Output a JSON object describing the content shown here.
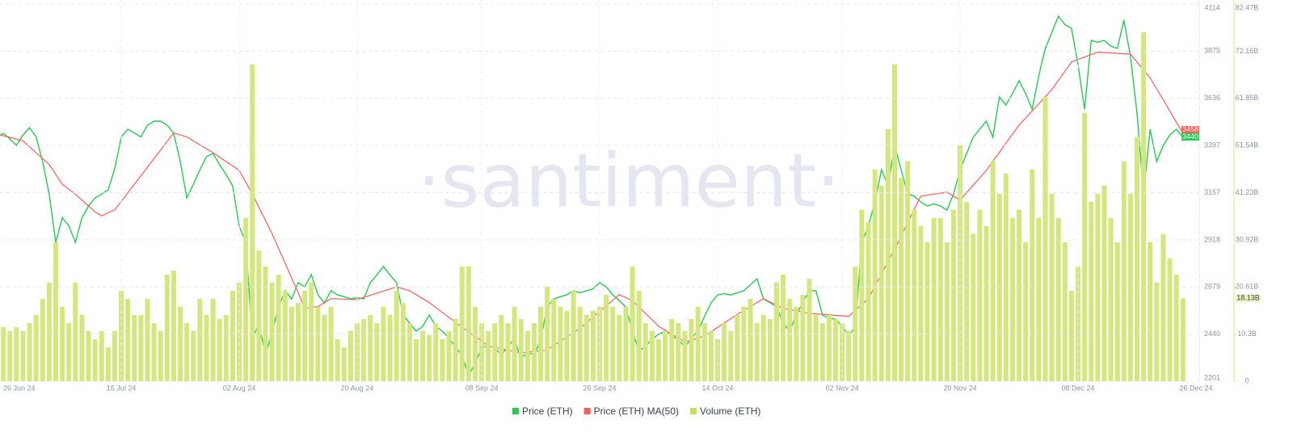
{
  "chart_data": {
    "type": "line",
    "watermark": "·santiment·",
    "x": [
      "26 Jun 24",
      "27 Jun 24",
      "28 Jun 24",
      "29 Jun 24",
      "30 Jun 24",
      "01 Jul 24",
      "02 Jul 24",
      "03 Jul 24",
      "04 Jul 24",
      "05 Jul 24",
      "06 Jul 24",
      "07 Jul 24",
      "08 Jul 24",
      "09 Jul 24",
      "10 Jul 24",
      "11 Jul 24",
      "12 Jul 24",
      "13 Jul 24",
      "14 Jul 24",
      "15 Jul 24",
      "16 Jul 24",
      "17 Jul 24",
      "18 Jul 24",
      "19 Jul 24",
      "20 Jul 24",
      "21 Jul 24",
      "22 Jul 24",
      "23 Jul 24",
      "24 Jul 24",
      "25 Jul 24",
      "26 Jul 24",
      "27 Jul 24",
      "28 Jul 24",
      "29 Jul 24",
      "30 Jul 24",
      "31 Jul 24",
      "01 Aug 24",
      "02 Aug 24",
      "03 Aug 24",
      "04 Aug 24",
      "05 Aug 24",
      "06 Aug 24",
      "07 Aug 24",
      "08 Aug 24",
      "09 Aug 24",
      "10 Aug 24",
      "11 Aug 24",
      "12 Aug 24",
      "13 Aug 24",
      "14 Aug 24",
      "15 Aug 24",
      "16 Aug 24",
      "17 Aug 24",
      "18 Aug 24",
      "19 Aug 24",
      "20 Aug 24",
      "21 Aug 24",
      "22 Aug 24",
      "23 Aug 24",
      "24 Aug 24",
      "25 Aug 24",
      "26 Aug 24",
      "27 Aug 24",
      "28 Aug 24",
      "29 Aug 24",
      "30 Aug 24",
      "31 Aug 24",
      "01 Sep 24",
      "02 Sep 24",
      "03 Sep 24",
      "04 Sep 24",
      "05 Sep 24",
      "06 Sep 24",
      "07 Sep 24",
      "08 Sep 24",
      "09 Sep 24",
      "10 Sep 24",
      "11 Sep 24",
      "12 Sep 24",
      "13 Sep 24",
      "14 Sep 24",
      "15 Sep 24",
      "16 Sep 24",
      "17 Sep 24",
      "18 Sep 24",
      "19 Sep 24",
      "20 Sep 24",
      "21 Sep 24",
      "22 Sep 24",
      "23 Sep 24",
      "24 Sep 24",
      "25 Sep 24",
      "26 Sep 24",
      "27 Sep 24",
      "28 Sep 24",
      "29 Sep 24",
      "30 Sep 24",
      "01 Oct 24",
      "02 Oct 24",
      "03 Oct 24",
      "04 Oct 24",
      "05 Oct 24",
      "06 Oct 24",
      "07 Oct 24",
      "08 Oct 24",
      "09 Oct 24",
      "10 Oct 24",
      "11 Oct 24",
      "12 Oct 24",
      "13 Oct 24",
      "14 Oct 24",
      "15 Oct 24",
      "16 Oct 24",
      "17 Oct 24",
      "18 Oct 24",
      "19 Oct 24",
      "20 Oct 24",
      "21 Oct 24",
      "22 Oct 24",
      "23 Oct 24",
      "24 Oct 24",
      "25 Oct 24",
      "26 Oct 24",
      "27 Oct 24",
      "28 Oct 24",
      "29 Oct 24",
      "30 Oct 24",
      "31 Oct 24",
      "01 Nov 24",
      "02 Nov 24",
      "03 Nov 24",
      "04 Nov 24",
      "05 Nov 24",
      "06 Nov 24",
      "07 Nov 24",
      "08 Nov 24",
      "09 Nov 24",
      "10 Nov 24",
      "11 Nov 24",
      "12 Nov 24",
      "13 Nov 24",
      "14 Nov 24",
      "15 Nov 24",
      "16 Nov 24",
      "17 Nov 24",
      "18 Nov 24",
      "19 Nov 24",
      "20 Nov 24",
      "21 Nov 24",
      "22 Nov 24",
      "23 Nov 24",
      "24 Nov 24",
      "25 Nov 24",
      "26 Nov 24",
      "27 Nov 24",
      "28 Nov 24",
      "29 Nov 24",
      "30 Nov 24",
      "01 Dec 24",
      "02 Dec 24",
      "03 Dec 24",
      "04 Dec 24",
      "05 Dec 24",
      "06 Dec 24",
      "07 Dec 24",
      "08 Dec 24",
      "09 Dec 24",
      "10 Dec 24",
      "11 Dec 24",
      "12 Dec 24",
      "13 Dec 24",
      "14 Dec 24",
      "15 Dec 24",
      "16 Dec 24",
      "17 Dec 24",
      "18 Dec 24",
      "19 Dec 24",
      "20 Dec 24",
      "21 Dec 24",
      "22 Dec 24",
      "23 Dec 24",
      "24 Dec 24",
      "25 Dec 24",
      "26 Dec 24"
    ],
    "xticks": [
      "26 Jun 24",
      "15 Jul 24",
      "02 Aug 24",
      "20 Aug 24",
      "08 Sep 24",
      "26 Sep 24",
      "14 Oct 24",
      "02 Nov 24",
      "20 Nov 24",
      "08 Dec 24",
      "26 Dec 24"
    ],
    "ylim": [
      2201,
      4114
    ],
    "yticks": [
      2201,
      2440,
      2679,
      2918,
      3157,
      3397,
      3636,
      3875,
      4114
    ],
    "y2lim": [
      0,
      82.47
    ],
    "y2ticks": [
      0,
      {
        "value": 10.3,
        "label": "10.3B"
      },
      {
        "value": 20.61,
        "label": "20.61B"
      },
      {
        "value": 30.92,
        "label": "30.92B"
      },
      {
        "value": 41.23,
        "label": "41.23B"
      },
      {
        "value": 51.54,
        "label": "51.54B"
      },
      {
        "value": 61.85,
        "label": "61.85B"
      },
      {
        "value": 72.16,
        "label": "72.16B"
      },
      {
        "value": 82.47,
        "label": "82.47B"
      }
    ],
    "grid": true,
    "series": [
      {
        "name": "Price (ETH)",
        "color": "#26c953",
        "values": [
          3438,
          3458,
          3430,
          3397,
          3450,
          3487,
          3440,
          3315,
          3150,
          2905,
          3030,
          2990,
          2905,
          3030,
          3090,
          3131,
          3150,
          3172,
          3280,
          3440,
          3479,
          3460,
          3440,
          3500,
          3520,
          3520,
          3500,
          3458,
          3315,
          3131,
          3200,
          3274,
          3340,
          3356,
          3300,
          3250,
          3192,
          2987,
          2905,
          2414,
          2496,
          2332,
          2450,
          2578,
          2660,
          2619,
          2701,
          2680,
          2742,
          2640,
          2598,
          2660,
          2639,
          2630,
          2619,
          2625,
          2619,
          2701,
          2740,
          2783,
          2740,
          2701,
          2537,
          2496,
          2455,
          2480,
          2537,
          2480,
          2455,
          2420,
          2373,
          2332,
          2230,
          2291,
          2373,
          2380,
          2373,
          2332,
          2380,
          2414,
          2312,
          2350,
          2332,
          2414,
          2578,
          2619,
          2630,
          2640,
          2660,
          2650,
          2660,
          2670,
          2701,
          2680,
          2639,
          2610,
          2578,
          2455,
          2353,
          2380,
          2414,
          2440,
          2455,
          2430,
          2414,
          2373,
          2420,
          2455,
          2530,
          2598,
          2639,
          2645,
          2639,
          2650,
          2660,
          2690,
          2721,
          2619,
          2600,
          2578,
          2496,
          2455,
          2537,
          2600,
          2660,
          2660,
          2537,
          2520,
          2516,
          2480,
          2435,
          2475,
          2905,
          2987,
          3110,
          3274,
          3192,
          3397,
          3274,
          3151,
          3140,
          3110,
          3090,
          3100,
          3090,
          3069,
          3151,
          3274,
          3356,
          3438,
          3480,
          3520,
          3438,
          3643,
          3602,
          3660,
          3725,
          3660,
          3580,
          3750,
          3889,
          3970,
          4052,
          4010,
          3991,
          3807,
          3580,
          3930,
          3920,
          3930,
          3900,
          3889,
          4032,
          3848,
          3561,
          3151,
          3479,
          3315,
          3397,
          3450,
          3479,
          3440,
          null,
          null
        ]
      },
      {
        "name": "Price (ETH) MA(50)",
        "color": "#ff5b5b",
        "values": [
          3455,
          3446,
          3438,
          3429,
          3420,
          3390,
          3360,
          3330,
          3300,
          3250,
          3200,
          3175,
          3150,
          3120,
          3090,
          3060,
          3040,
          3055,
          3070,
          3113,
          3157,
          3200,
          3243,
          3287,
          3330,
          3373,
          3417,
          3460,
          3450,
          3440,
          3420,
          3400,
          3380,
          3360,
          3338,
          3315,
          3293,
          3270,
          3210,
          3150,
          3083,
          3017,
          2950,
          2875,
          2800,
          2725,
          2650,
          2570,
          2575,
          2580,
          2600,
          2620,
          2619,
          2618,
          2616,
          2615,
          2626,
          2637,
          2648,
          2658,
          2669,
          2680,
          2670,
          2660,
          2640,
          2620,
          2600,
          2575,
          2550,
          2525,
          2500,
          2476,
          2452,
          2428,
          2404,
          2380,
          2373,
          2366,
          2359,
          2352,
          2345,
          2349,
          2352,
          2356,
          2360,
          2382,
          2404,
          2426,
          2448,
          2470,
          2498,
          2527,
          2555,
          2583,
          2612,
          2640,
          2625,
          2610,
          2578,
          2545,
          2513,
          2480,
          2460,
          2440,
          2420,
          2400,
          2410,
          2420,
          2430,
          2452,
          2474,
          2496,
          2518,
          2540,
          2560,
          2580,
          2600,
          2620,
          2603,
          2587,
          2570,
          2564,
          2558,
          2551,
          2545,
          2543,
          2540,
          2538,
          2535,
          2533,
          2530,
          2560,
          2590,
          2620,
          2683,
          2745,
          2808,
          2870,
          2938,
          3005,
          3073,
          3140,
          3145,
          3150,
          3155,
          3160,
          3140,
          3120,
          3158,
          3195,
          3233,
          3270,
          3316,
          3362,
          3408,
          3454,
          3500,
          3536,
          3572,
          3608,
          3644,
          3680,
          3727,
          3773,
          3820,
          3833,
          3845,
          3858,
          3870,
          3868,
          3866,
          3864,
          3862,
          3860,
          3820,
          3780,
          3740,
          3684,
          3628,
          3571,
          3515,
          3458,
          null,
          null
        ]
      },
      {
        "name": "Volume (ETH)",
        "color": "#d4e67e",
        "type": "bar",
        "axis": "y2",
        "values": [
          11.8,
          11.8,
          11.0,
          11.8,
          11.0,
          12.7,
          14.5,
          18.0,
          21.6,
          30.4,
          16.3,
          12.7,
          21.6,
          14.5,
          11.0,
          9.2,
          11.0,
          7.4,
          11.0,
          19.8,
          18.0,
          14.5,
          14.5,
          18.0,
          12.7,
          11.0,
          23.3,
          24.2,
          16.3,
          12.7,
          11.0,
          18.0,
          14.5,
          18.0,
          13.6,
          14.5,
          19.8,
          21.6,
          35.7,
          69.3,
          28.6,
          25.1,
          21.6,
          23.3,
          19.8,
          16.3,
          17.1,
          19.8,
          21.6,
          16.3,
          14.5,
          16.3,
          9.2,
          7.4,
          11.0,
          12.7,
          13.6,
          14.5,
          12.7,
          16.3,
          14.5,
          19.8,
          17.1,
          12.7,
          9.2,
          11.0,
          10.1,
          12.7,
          9.2,
          11.0,
          13.6,
          25.1,
          25.1,
          16.3,
          12.7,
          11.0,
          12.7,
          14.5,
          12.7,
          16.3,
          13.6,
          11.0,
          12.7,
          16.3,
          20.7,
          18.0,
          16.3,
          15.4,
          19.8,
          16.3,
          14.5,
          15.4,
          16.3,
          18.9,
          16.3,
          14.5,
          16.3,
          25.1,
          19.8,
          12.7,
          11.0,
          9.2,
          11.0,
          13.6,
          12.7,
          11.0,
          13.6,
          16.3,
          12.7,
          11.0,
          9.2,
          12.7,
          11.0,
          14.5,
          16.3,
          18.0,
          12.7,
          14.5,
          13.6,
          21.6,
          23.3,
          18.0,
          16.3,
          18.9,
          22.4,
          14.5,
          12.7,
          14.5,
          13.6,
          12.7,
          11.0,
          25.1,
          37.5,
          34.8,
          46.3,
          42.8,
          55.1,
          69.3,
          44.5,
          48.1,
          37.5,
          33.9,
          30.4,
          35.7,
          35.7,
          30.4,
          37.5,
          51.6,
          39.2,
          32.2,
          37.5,
          33.9,
          48.1,
          41.0,
          45.4,
          35.7,
          37.5,
          30.4,
          46.3,
          35.7,
          62.2,
          41.0,
          35.7,
          30.4,
          19.8,
          25.1,
          58.7,
          39.2,
          41.0,
          42.8,
          35.7,
          30.4,
          48.1,
          41.0,
          53.4,
          76.3,
          30.4,
          21.6,
          32.2,
          26.9,
          23.3,
          18.13,
          null,
          null
        ],
        "value_labels": [
          null,
          null,
          null,
          null,
          null,
          null,
          null,
          null,
          null,
          null,
          null,
          null,
          null,
          null,
          null,
          null,
          null,
          null,
          null,
          null,
          null,
          null,
          null,
          null,
          null,
          null,
          null,
          null,
          null,
          null,
          null,
          null,
          null,
          null,
          null,
          null,
          null,
          null,
          null,
          null,
          null,
          null,
          null,
          null,
          null,
          null,
          null,
          null,
          null,
          null,
          null,
          null,
          null,
          null,
          null,
          null,
          null,
          null,
          null,
          null,
          null,
          null,
          null,
          null,
          null,
          null,
          null,
          null,
          null,
          null,
          null,
          null,
          null,
          null,
          null,
          null,
          null,
          null,
          null,
          null,
          null,
          null,
          null,
          null,
          null,
          null,
          null,
          null,
          null,
          null,
          null,
          null,
          null,
          null,
          null,
          null,
          null,
          null,
          null,
          null,
          null,
          null,
          null,
          null,
          null,
          null,
          null,
          null,
          null,
          null,
          null,
          null,
          null,
          null,
          null,
          null,
          null,
          null,
          null,
          null,
          null,
          null,
          null,
          null,
          null,
          null,
          null,
          null,
          null,
          null,
          null,
          null,
          null,
          null,
          null,
          null,
          null,
          null,
          null,
          null,
          null,
          null,
          null,
          null,
          null,
          null,
          null,
          null,
          null,
          null,
          null,
          null,
          null,
          null,
          null,
          null,
          null,
          null,
          null,
          null,
          null,
          null,
          null,
          null,
          null,
          null,
          null,
          null,
          null,
          null,
          null,
          null,
          null,
          null,
          null,
          null,
          null,
          null,
          null,
          null,
          null,
          "18.13B",
          null,
          null
        ]
      }
    ]
  }
}
